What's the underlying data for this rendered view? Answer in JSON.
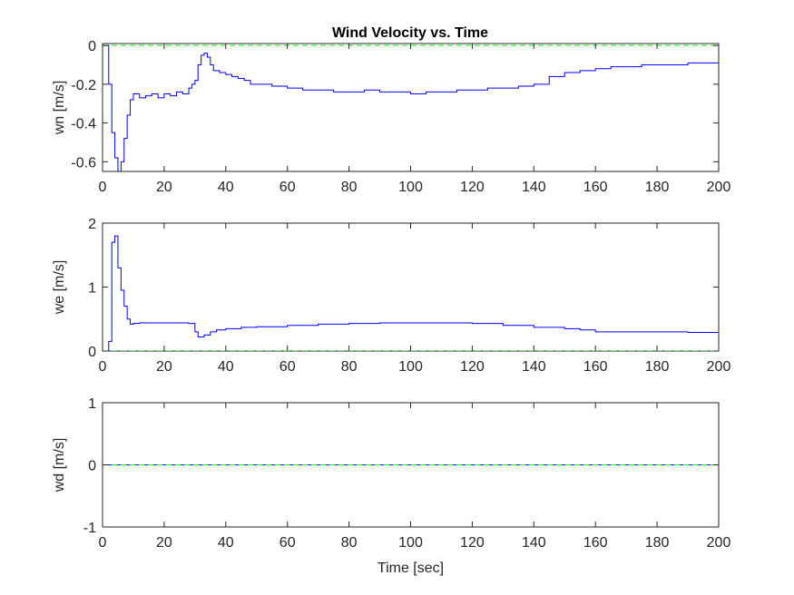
{
  "figure": {
    "title": "Wind Velocity vs. Time"
  },
  "colors": {
    "series": "#0000ff",
    "reference": "#00ff00",
    "axes": "#262626",
    "background": "#ffffff"
  },
  "chart_data": [
    {
      "type": "line",
      "id": "wn",
      "title": "Wind Velocity vs. Time",
      "xlabel": "",
      "ylabel": "wn [m/s]",
      "xlim": [
        0,
        200
      ],
      "ylim": [
        -0.65,
        0.01
      ],
      "xticks": [
        0,
        20,
        40,
        60,
        80,
        100,
        120,
        140,
        160,
        180,
        200
      ],
      "xtick_labels": [
        "0",
        "20",
        "40",
        "60",
        "80",
        "100",
        "120",
        "140",
        "160",
        "180",
        "200"
      ],
      "yticks": [
        -0.6,
        -0.4,
        -0.2,
        0
      ],
      "ytick_labels": [
        "-0.6",
        "-0.4",
        "-0.2",
        "0"
      ],
      "grid": false,
      "series": [
        {
          "style": "stairs-solid",
          "color": "#0000ff",
          "x": [
            0,
            1,
            2,
            3,
            4,
            5,
            6,
            7,
            8,
            9,
            10,
            12,
            14,
            16,
            18,
            20,
            22,
            24,
            26,
            28,
            29,
            30,
            31,
            32,
            33,
            34,
            35,
            36,
            38,
            40,
            42,
            44,
            46,
            48,
            50,
            55,
            60,
            65,
            70,
            75,
            80,
            85,
            90,
            95,
            100,
            105,
            110,
            115,
            120,
            125,
            130,
            135,
            140,
            145,
            150,
            155,
            160,
            165,
            170,
            175,
            180,
            185,
            190,
            195,
            200
          ],
          "y": [
            0,
            0,
            -0.2,
            -0.45,
            -0.58,
            -0.65,
            -0.6,
            -0.48,
            -0.36,
            -0.28,
            -0.25,
            -0.27,
            -0.26,
            -0.25,
            -0.27,
            -0.25,
            -0.26,
            -0.24,
            -0.25,
            -0.22,
            -0.2,
            -0.18,
            -0.1,
            -0.05,
            -0.04,
            -0.06,
            -0.1,
            -0.13,
            -0.14,
            -0.15,
            -0.16,
            -0.17,
            -0.18,
            -0.2,
            -0.2,
            -0.21,
            -0.22,
            -0.23,
            -0.23,
            -0.24,
            -0.24,
            -0.23,
            -0.24,
            -0.24,
            -0.25,
            -0.24,
            -0.24,
            -0.23,
            -0.23,
            -0.22,
            -0.22,
            -0.21,
            -0.2,
            -0.16,
            -0.14,
            -0.13,
            -0.12,
            -0.11,
            -0.11,
            -0.1,
            -0.1,
            -0.1,
            -0.09,
            -0.09,
            -0.08
          ]
        },
        {
          "style": "dashed",
          "color": "#00ff00",
          "x": [
            0,
            200
          ],
          "y": [
            0,
            0
          ]
        }
      ]
    },
    {
      "type": "line",
      "id": "we",
      "title": "",
      "xlabel": "",
      "ylabel": "we [m/s]",
      "xlim": [
        0,
        200
      ],
      "ylim": [
        0,
        2
      ],
      "xticks": [
        0,
        20,
        40,
        60,
        80,
        100,
        120,
        140,
        160,
        180,
        200
      ],
      "xtick_labels": [
        "0",
        "20",
        "40",
        "60",
        "80",
        "100",
        "120",
        "140",
        "160",
        "180",
        "200"
      ],
      "yticks": [
        0,
        1,
        2
      ],
      "ytick_labels": [
        "0",
        "1",
        "2"
      ],
      "grid": false,
      "series": [
        {
          "style": "stairs-solid",
          "color": "#0000ff",
          "x": [
            0,
            1,
            2,
            3,
            4,
            5,
            6,
            7,
            8,
            9,
            10,
            12,
            15,
            20,
            25,
            28,
            30,
            31,
            33,
            35,
            37,
            40,
            45,
            50,
            60,
            70,
            80,
            90,
            100,
            110,
            120,
            130,
            140,
            150,
            155,
            160,
            170,
            180,
            190,
            200
          ],
          "y": [
            0,
            0,
            0.15,
            1.7,
            1.8,
            1.3,
            0.95,
            0.7,
            0.5,
            0.42,
            0.43,
            0.44,
            0.44,
            0.44,
            0.44,
            0.43,
            0.3,
            0.22,
            0.25,
            0.3,
            0.33,
            0.35,
            0.37,
            0.38,
            0.4,
            0.42,
            0.43,
            0.44,
            0.44,
            0.44,
            0.43,
            0.4,
            0.37,
            0.35,
            0.33,
            0.3,
            0.3,
            0.3,
            0.29,
            0.28
          ]
        },
        {
          "style": "dashed",
          "color": "#00ff00",
          "x": [
            0,
            200
          ],
          "y": [
            0,
            0
          ]
        }
      ]
    },
    {
      "type": "line",
      "id": "wd",
      "title": "",
      "xlabel": "Time [sec]",
      "ylabel": "wd [m/s]",
      "xlim": [
        0,
        200
      ],
      "ylim": [
        -1,
        1
      ],
      "xticks": [
        0,
        20,
        40,
        60,
        80,
        100,
        120,
        140,
        160,
        180,
        200
      ],
      "xtick_labels": [
        "0",
        "20",
        "40",
        "60",
        "80",
        "100",
        "120",
        "140",
        "160",
        "180",
        "200"
      ],
      "yticks": [
        -1,
        0,
        1
      ],
      "ytick_labels": [
        "-1",
        "0",
        "1"
      ],
      "grid": false,
      "series": [
        {
          "style": "stairs-solid",
          "color": "#0000ff",
          "x": [
            0,
            200
          ],
          "y": [
            0,
            0
          ]
        },
        {
          "style": "dashed",
          "color": "#00ff00",
          "x": [
            0,
            200
          ],
          "y": [
            0,
            0
          ]
        }
      ]
    }
  ]
}
